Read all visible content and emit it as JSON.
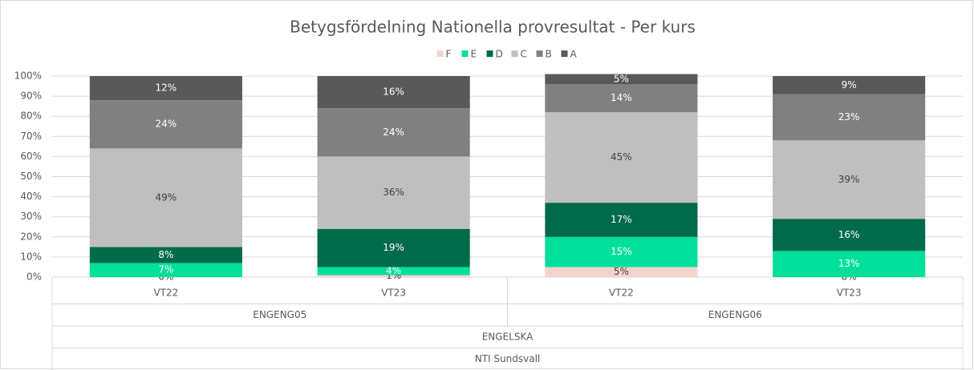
{
  "chart_data": {
    "type": "stacked_bar_100",
    "title": "Betygsfördelning Nationella provresultat - Per kurs",
    "categories": [
      "VT22",
      "VT23",
      "VT22",
      "VT23"
    ],
    "category_groups": [
      [
        "ENGENG05",
        null,
        "ENGENG06",
        null
      ],
      [
        "ENGELSKA",
        null,
        null,
        null
      ],
      [
        "NTI Sundsvall",
        null,
        null,
        null
      ]
    ],
    "series": [
      {
        "name": "F",
        "color": "#f4d3cf",
        "values": [
          0,
          1,
          5,
          0
        ],
        "value_labels": [
          "0%",
          "1%",
          "5%",
          "0%"
        ]
      },
      {
        "name": "E",
        "color": "#00e09a",
        "values": [
          7,
          4,
          15,
          13
        ],
        "value_labels": [
          "7%",
          "4%",
          "15%",
          "13%"
        ]
      },
      {
        "name": "D",
        "color": "#006b4a",
        "values": [
          8,
          19,
          17,
          16
        ],
        "value_labels": [
          "8%",
          "19%",
          "17%",
          "16%"
        ]
      },
      {
        "name": "C",
        "color": "#bfbfbf",
        "values": [
          49,
          36,
          45,
          39
        ],
        "value_labels": [
          "49%",
          "36%",
          "45%",
          "39%"
        ]
      },
      {
        "name": "B",
        "color": "#808080",
        "values": [
          24,
          24,
          14,
          23
        ],
        "value_labels": [
          "24%",
          "24%",
          "14%",
          "23%"
        ]
      },
      {
        "name": "A",
        "color": "#595959",
        "values": [
          12,
          16,
          5,
          9
        ],
        "value_labels": [
          "12%",
          "16%",
          "5%",
          "9%"
        ]
      }
    ],
    "ylim": [
      0,
      100
    ],
    "yticks": [
      {
        "value": 0,
        "label": "0%"
      },
      {
        "value": 10,
        "label": "10%"
      },
      {
        "value": 20,
        "label": "20%"
      },
      {
        "value": 30,
        "label": "30%"
      },
      {
        "value": 40,
        "label": "40%"
      },
      {
        "value": 50,
        "label": "50%"
      },
      {
        "value": 60,
        "label": "60%"
      },
      {
        "value": 70,
        "label": "70%"
      },
      {
        "value": 80,
        "label": "80%"
      },
      {
        "value": 90,
        "label": "90%"
      },
      {
        "value": 100,
        "label": "100%"
      }
    ],
    "grid": true,
    "legend": "top"
  }
}
